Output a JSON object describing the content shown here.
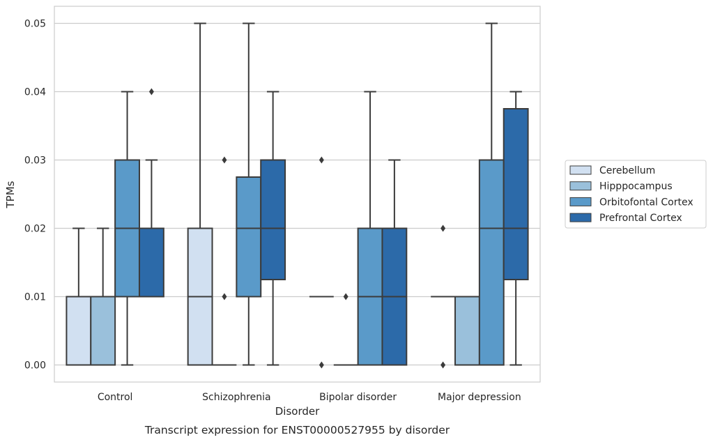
{
  "chart_data": {
    "type": "box",
    "caption": "Transcript expression for ENST00000527955 by disorder",
    "xlabel": "Disorder",
    "ylabel": "TPMs",
    "ylim": [
      -0.0025,
      0.0525
    ],
    "yticks": [
      "0.00",
      "0.01",
      "0.02",
      "0.03",
      "0.04",
      "0.05"
    ],
    "ytick_values": [
      0,
      0.01,
      0.02,
      0.03,
      0.04,
      0.05
    ],
    "grid": true,
    "legend_position": "right",
    "categories": [
      "Control",
      "Schizophrenia",
      "Bipolar disorder",
      "Major depression"
    ],
    "series": [
      {
        "name": "Cerebellum",
        "color": "#d1e0f1",
        "boxes": [
          {
            "whisker_low": 0,
            "q1": 0,
            "median": 0,
            "q3": 0.01,
            "whisker_high": 0.02,
            "outliers": []
          },
          {
            "whisker_low": 0,
            "q1": 0,
            "median": 0.01,
            "q3": 0.02,
            "whisker_high": 0.05,
            "outliers": []
          },
          {
            "whisker_low": 0.01,
            "q1": 0.01,
            "median": 0.01,
            "q3": 0.01,
            "whisker_high": 0.01,
            "outliers": [
              0,
              0.03
            ]
          },
          {
            "whisker_low": 0.01,
            "q1": 0.01,
            "median": 0.01,
            "q3": 0.01,
            "whisker_high": 0.01,
            "outliers": [
              0,
              0.02
            ]
          }
        ]
      },
      {
        "name": "Hipppocampus",
        "color": "#9ac0db",
        "boxes": [
          {
            "whisker_low": 0,
            "q1": 0,
            "median": 0,
            "q3": 0.01,
            "whisker_high": 0.02,
            "outliers": []
          },
          {
            "whisker_low": 0,
            "q1": 0,
            "median": 0,
            "q3": 0,
            "whisker_high": 0,
            "outliers": [
              0.01,
              0.03
            ]
          },
          {
            "whisker_low": 0,
            "q1": 0,
            "median": 0,
            "q3": 0,
            "whisker_high": 0,
            "outliers": [
              0.01
            ]
          },
          {
            "whisker_low": 0,
            "q1": 0,
            "median": 0,
            "q3": 0.01,
            "whisker_high": 0.01,
            "outliers": []
          }
        ]
      },
      {
        "name": "Orbitofontal Cortex",
        "color": "#5a9ac9",
        "boxes": [
          {
            "whisker_low": 0,
            "q1": 0.01,
            "median": 0.02,
            "q3": 0.03,
            "whisker_high": 0.04,
            "outliers": []
          },
          {
            "whisker_low": 0,
            "q1": 0.01,
            "median": 0.02,
            "q3": 0.0275,
            "whisker_high": 0.05,
            "outliers": []
          },
          {
            "whisker_low": 0,
            "q1": 0,
            "median": 0.01,
            "q3": 0.02,
            "whisker_high": 0.04,
            "outliers": []
          },
          {
            "whisker_low": 0,
            "q1": 0,
            "median": 0.02,
            "q3": 0.03,
            "whisker_high": 0.05,
            "outliers": []
          }
        ]
      },
      {
        "name": "Prefrontal Cortex",
        "color": "#2c6aa9",
        "boxes": [
          {
            "whisker_low": 0.01,
            "q1": 0.01,
            "median": 0.02,
            "q3": 0.02,
            "whisker_high": 0.03,
            "outliers": [
              0.04
            ]
          },
          {
            "whisker_low": 0,
            "q1": 0.0125,
            "median": 0.02,
            "q3": 0.03,
            "whisker_high": 0.04,
            "outliers": []
          },
          {
            "whisker_low": 0,
            "q1": 0,
            "median": 0.01,
            "q3": 0.02,
            "whisker_high": 0.03,
            "outliers": []
          },
          {
            "whisker_low": 0,
            "q1": 0.0125,
            "median": 0.02,
            "q3": 0.0375,
            "whisker_high": 0.04,
            "outliers": []
          }
        ]
      }
    ]
  }
}
